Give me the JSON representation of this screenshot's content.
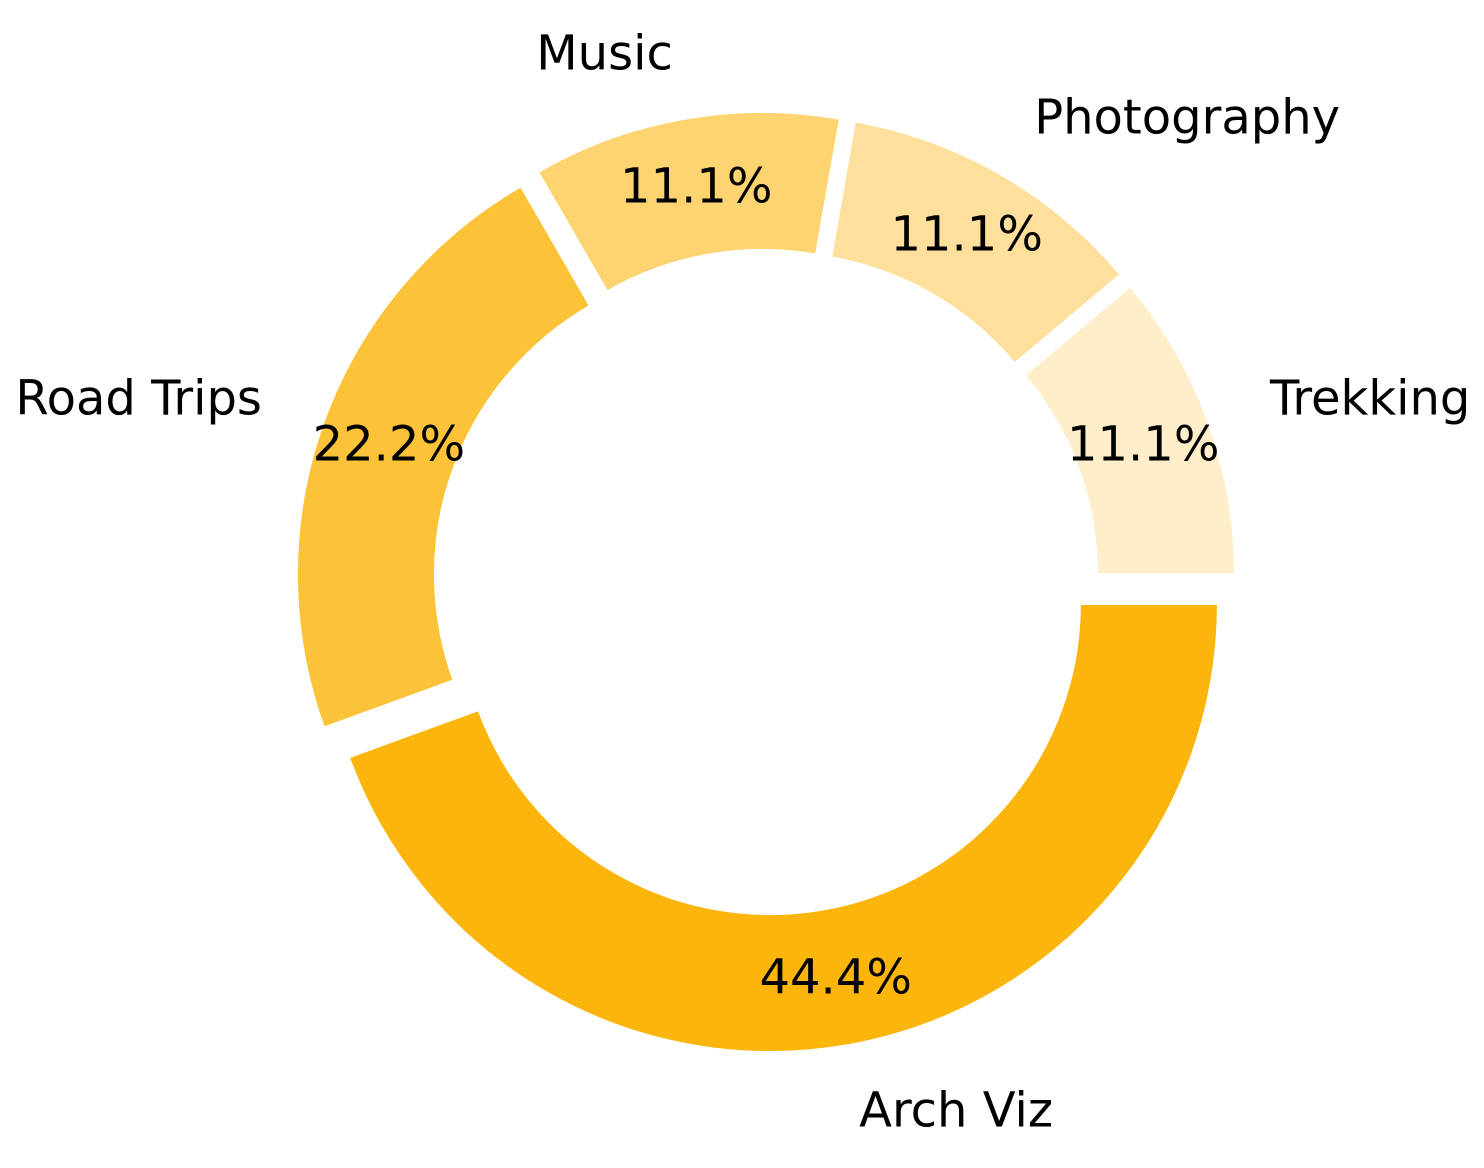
{
  "chart_data": {
    "type": "pie",
    "style": "donut",
    "categories": [
      "Arch Viz",
      "Road Trips",
      "Music",
      "Photography",
      "Trekking"
    ],
    "values": [
      44.4,
      22.2,
      11.1,
      11.1,
      11.1
    ],
    "percent_labels": [
      "44.4%",
      "22.2%",
      "11.1%",
      "11.1%",
      "11.1%"
    ],
    "colors": [
      "#fcb50b",
      "#fcc338",
      "#fdd46f",
      "#fee09c",
      "#feefca"
    ],
    "explode": [
      0.05,
      0.05,
      0.05,
      0.05,
      0.05
    ],
    "start_angle_deg": 0,
    "direction": "clockwise",
    "title": "",
    "legend": "none"
  }
}
